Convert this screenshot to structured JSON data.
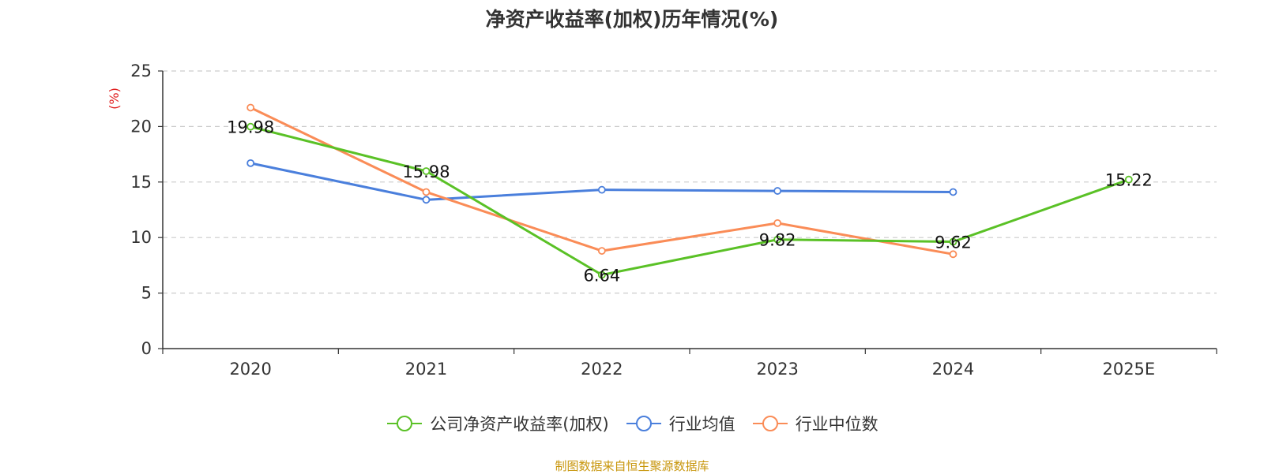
{
  "title": "净资产收益率(加权)历年情况(%)",
  "source": "制图数据来自恒生聚源数据库",
  "chart_data": {
    "type": "line",
    "title": "净资产收益率(加权)历年情况(%)",
    "xlabel": "",
    "ylabel": "(%)",
    "ylim": [
      0,
      25
    ],
    "yticks": [
      0,
      5,
      10,
      15,
      20,
      25
    ],
    "grid": true,
    "legend_position": "bottom-center",
    "categories": [
      "2020",
      "2021",
      "2022",
      "2023",
      "2024",
      "2025E"
    ],
    "series": [
      {
        "name": "公司净资产收益率(加权)",
        "color": "#5ac126",
        "values": [
          19.98,
          15.98,
          6.64,
          9.82,
          9.62,
          15.22
        ],
        "labels": [
          "19.98",
          "15.98",
          "6.64",
          "9.82",
          "9.62",
          "15.22"
        ]
      },
      {
        "name": "行业均值",
        "color": "#4a7fdc",
        "values": [
          16.7,
          13.4,
          14.3,
          14.2,
          14.1,
          null
        ]
      },
      {
        "name": "行业中位数",
        "color": "#fa8c57",
        "values": [
          21.7,
          14.1,
          8.8,
          11.3,
          8.5,
          null
        ]
      }
    ]
  }
}
